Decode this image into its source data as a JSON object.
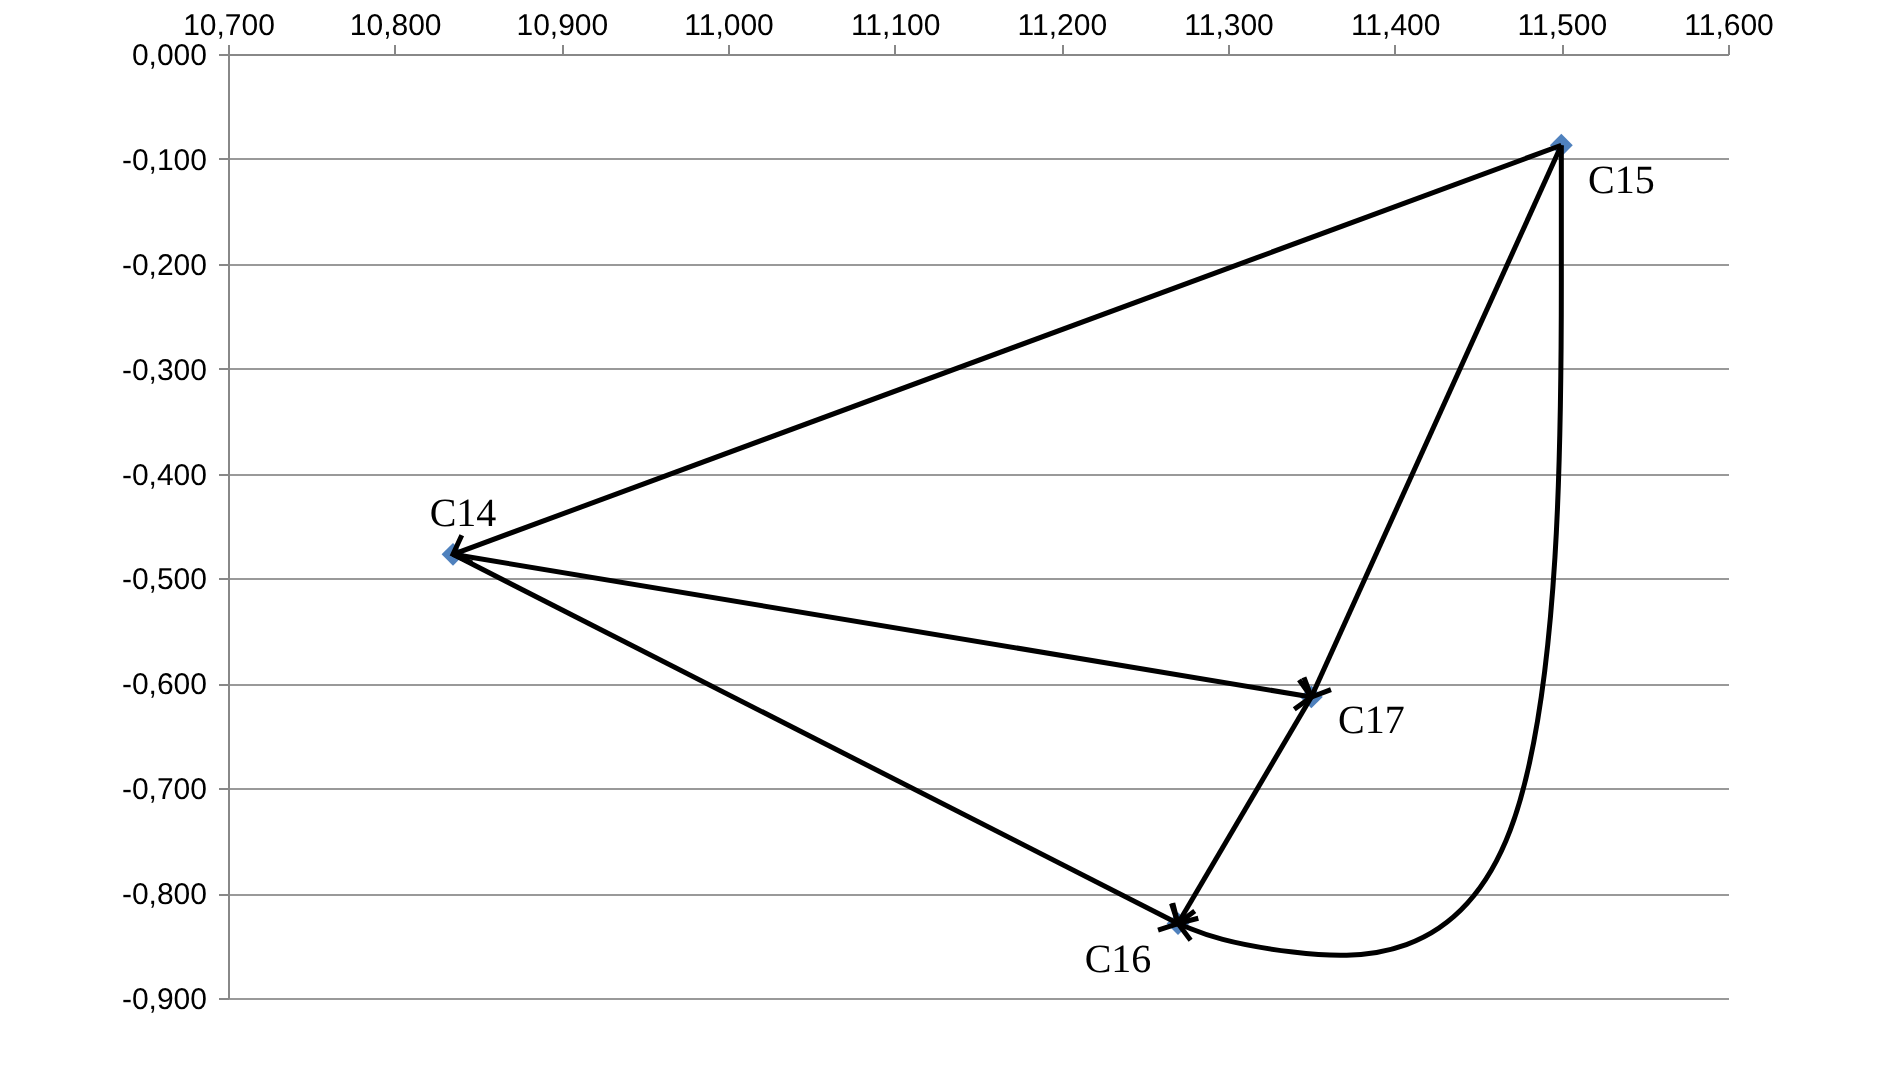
{
  "chart_data": {
    "type": "scatter",
    "x": [
      10.835,
      11.5,
      11.27,
      11.35
    ],
    "series": [
      {
        "color": "#4f81bd",
        "values": [
          -0.477,
          -0.087,
          -0.829,
          -0.613
        ],
        "value_labels": [
          "C14",
          "C15",
          "C16",
          "C17"
        ]
      }
    ],
    "xlim": [
      10.7,
      11.6
    ],
    "xticks": [
      {
        "value": 10.7,
        "label": "10,700"
      },
      {
        "value": 10.8,
        "label": "10,800"
      },
      {
        "value": 10.9,
        "label": "10,900"
      },
      {
        "value": 11.0,
        "label": "11,000"
      },
      {
        "value": 11.1,
        "label": "11,100"
      },
      {
        "value": 11.2,
        "label": "11,200"
      },
      {
        "value": 11.3,
        "label": "11,300"
      },
      {
        "value": 11.4,
        "label": "11,400"
      },
      {
        "value": 11.5,
        "label": "11,500"
      },
      {
        "value": 11.6,
        "label": "11,600"
      }
    ],
    "ylim": [
      -0.9,
      0
    ],
    "yticks": [
      {
        "value": 0,
        "label": "0,000"
      },
      {
        "value": -0.1,
        "label": "-0,100"
      },
      {
        "value": -0.2,
        "label": "-0,200"
      },
      {
        "value": -0.3,
        "label": "-0,300"
      },
      {
        "value": -0.4,
        "label": "-0,400"
      },
      {
        "value": -0.5,
        "label": "-0,500"
      },
      {
        "value": -0.6,
        "label": "-0,600"
      },
      {
        "value": -0.7,
        "label": "-0,700"
      },
      {
        "value": -0.8,
        "label": "-0,800"
      },
      {
        "value": -0.9,
        "label": "-0,900"
      }
    ],
    "grid": "y",
    "marker": "diamond"
  }
}
